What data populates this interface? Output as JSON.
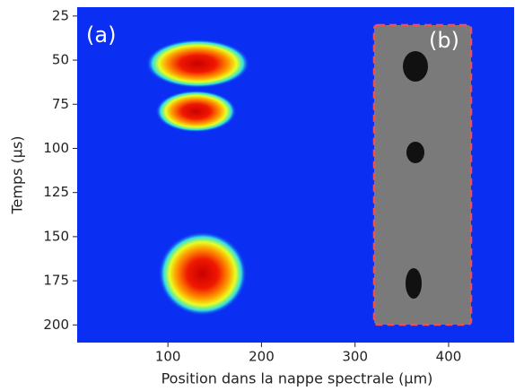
{
  "chart_data": {
    "type": "heatmap",
    "xlabel": "Position dans la nappe spectrale (µm)",
    "ylabel": "Temps (µs)",
    "xlim": [
      3,
      470
    ],
    "xticks": [
      100,
      200,
      300,
      400
    ],
    "ylim": [
      20,
      210
    ],
    "yticks": [
      25,
      50,
      75,
      100,
      125,
      150,
      175,
      200
    ],
    "y_inverted": true,
    "background": "#0b2ff2",
    "spots": [
      {
        "x": 132,
        "y": 52,
        "width": 96,
        "height": 22
      },
      {
        "x": 130,
        "y": 79,
        "width": 75,
        "height": 19
      },
      {
        "x": 137,
        "y": 171,
        "width": 82,
        "height": 38
      }
    ],
    "panel_labels": [
      "(a)",
      "(b)"
    ]
  }
}
